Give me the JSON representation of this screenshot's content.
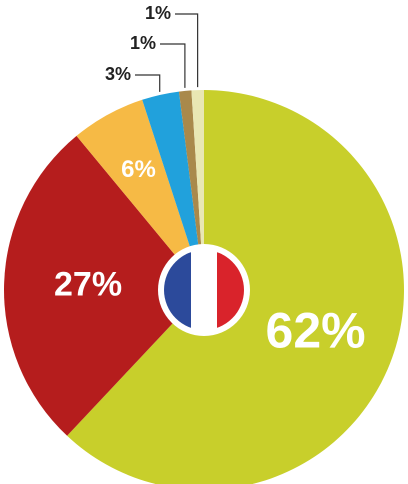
{
  "chart_data": {
    "type": "pie",
    "values": [
      62,
      27,
      6,
      3,
      1,
      1
    ],
    "value_labels": [
      "62%",
      "27%",
      "6%",
      "3%",
      "1%",
      "1%"
    ],
    "colors": [
      "#c8cf2b",
      "#b51d1d",
      "#f6ba45",
      "#21a1dc",
      "#a9894b",
      "#e9e7b3"
    ]
  }
}
